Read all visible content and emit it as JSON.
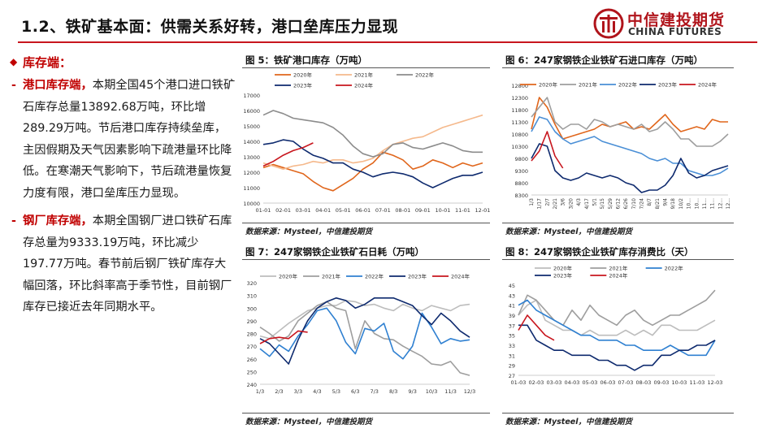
{
  "header": {
    "title": "1.2、铁矿基本面：供需关系好转，港口垒库压力显现",
    "logo_cn": "中信建投期货",
    "logo_en": "CHINA FUTURES"
  },
  "left": {
    "section_title": "库存端：",
    "p1_head": "港口库存端，",
    "p1_body": "本期全国45个港口进口铁矿石库存总量13892.68万吨，环比增289.29万吨。节后港口库存持续垒库，主因假期及天气因素影响下疏港量环比降低。在寒潮天气影响下，节后疏港量恢复力度有限，港口垒库压力显现。",
    "p2_head": "钢厂库存端，",
    "p2_body": "本期全国钢厂进口铁矿石库存总量为9333.19万吨，环比减少197.77万吨。春节前后钢厂铁矿库存大幅回落，环比斜率高于季节性，目前钢厂库存已接近去年同期水平。"
  },
  "colors": {
    "c2020": "#e0661c",
    "c2021": "#f5b98c",
    "c2022": "#8c8c8c",
    "c2023": "#0e2a6e",
    "c2024": "#c8161e",
    "c2021_chart6": "#9e9e9e",
    "c2022_chart6": "#4a8fd6",
    "c2020_chart7": "#bdbdbd",
    "c2021_chart7": "#9e9e9e",
    "c2022_chart7": "#2f80d1"
  },
  "source_text": "数据来源：Mysteel，中信建投期货",
  "chart_data": [
    {
      "type": "line",
      "title": "图 5：铁矿港口库存（万吨）",
      "x_ticks": [
        "01-01",
        "02-01",
        "03-01",
        "04-01",
        "05-01",
        "06-01",
        "07-01",
        "08-01",
        "09-01",
        "10-01",
        "11-01",
        "12-01"
      ],
      "y_ticks": [
        10000,
        11000,
        12000,
        13000,
        14000,
        15000,
        16000,
        17000
      ],
      "ylim": [
        10000,
        17000
      ],
      "series": [
        {
          "name": "2020年",
          "values": [
            12300,
            12500,
            12300,
            12100,
            11900,
            11400,
            11000,
            10800,
            11200,
            11600,
            12200,
            12600,
            13300,
            13100,
            12800,
            12200,
            12400,
            12800,
            12600,
            12300,
            12600,
            12400,
            12600
          ]
        },
        {
          "name": "2021年",
          "values": [
            12600,
            12400,
            12200,
            12400,
            12500,
            12700,
            12600,
            12800,
            12800,
            12600,
            12700,
            12900,
            13400,
            13800,
            14000,
            14200,
            14300,
            14600,
            14900,
            15100,
            15300,
            15500,
            15700
          ]
        },
        {
          "name": "2022年",
          "values": [
            15700,
            16000,
            15800,
            15500,
            15400,
            15300,
            15200,
            14900,
            14400,
            13700,
            13200,
            13000,
            13200,
            13800,
            13900,
            13600,
            13500,
            13700,
            13900,
            13700,
            13400,
            13300,
            13300
          ]
        },
        {
          "name": "2023年",
          "values": [
            13800,
            13900,
            14100,
            14000,
            13500,
            13100,
            12900,
            12600,
            12600,
            12200,
            12000,
            11700,
            11900,
            12000,
            11900,
            11700,
            11300,
            11000,
            11300,
            11600,
            11800,
            11800,
            12000
          ]
        },
        {
          "name": "2024年",
          "values": [
            12400,
            12700,
            13100,
            13400,
            13600,
            13900
          ]
        }
      ]
    },
    {
      "type": "line",
      "title": "图 6：247家钢铁企业铁矿石进口库存（万吨）",
      "x_ticks": [
        "1/3",
        "1/17",
        "2/7",
        "2/21",
        "3/6",
        "3/20",
        "4/3",
        "4/17",
        "5/1",
        "5/15",
        "5/29",
        "6/12",
        "6/26",
        "7/10",
        "7/24",
        "8/7",
        "8/21",
        "9/4",
        "9/18",
        "10/2",
        "10...",
        "10...",
        "11...",
        "11...",
        "12...",
        "12..."
      ],
      "y_ticks": [
        8300,
        8800,
        9300,
        9800,
        10300,
        10800,
        11300,
        11800,
        12300,
        12800
      ],
      "ylim": [
        8300,
        12800
      ],
      "series": [
        {
          "name": "2020年",
          "values": [
            11000,
            12300,
            11900,
            11200,
            10600,
            10700,
            10800,
            10900,
            11000,
            11200,
            11100,
            11200,
            11300,
            11000,
            11100,
            11000,
            11300,
            11600,
            11200,
            10900,
            11000,
            11100,
            11000,
            11400,
            11300,
            11300
          ]
        },
        {
          "name": "2021年",
          "values": [
            11500,
            11900,
            12300,
            11300,
            11000,
            11200,
            11200,
            11000,
            11400,
            11300,
            11100,
            11200,
            11100,
            11000,
            11200,
            10900,
            11000,
            11300,
            11000,
            10600,
            10600,
            10300,
            10300,
            10300,
            10500,
            10800
          ]
        },
        {
          "name": "2022年",
          "values": [
            10900,
            11500,
            11400,
            10900,
            10600,
            10400,
            10500,
            10600,
            10700,
            10500,
            10400,
            10300,
            10200,
            10100,
            10000,
            9800,
            9700,
            9800,
            9600,
            9600,
            9300,
            9200,
            9100,
            9100,
            9200,
            9400
          ]
        },
        {
          "name": "2023年",
          "values": [
            9800,
            10400,
            10300,
            9300,
            9000,
            8900,
            9000,
            9200,
            9100,
            9000,
            9100,
            9000,
            8800,
            8700,
            8400,
            8500,
            8500,
            8700,
            9100,
            9800,
            9200,
            9000,
            9100,
            9300,
            9400,
            9500
          ]
        },
        {
          "name": "2024年",
          "values": [
            9700,
            10100,
            10900,
            9900,
            9400
          ]
        }
      ]
    },
    {
      "type": "line",
      "title": "图 7：247家钢铁企业铁矿石日耗（万吨）",
      "x_ticks": [
        "1/3",
        "2/3",
        "3/3",
        "4/3",
        "5/3",
        "6/3",
        "7/3",
        "8/3",
        "9/3",
        "10/3",
        "11/3",
        "12/3"
      ],
      "y_ticks": [
        240,
        250,
        260,
        270,
        280,
        290,
        300,
        310,
        320
      ],
      "ylim": [
        240,
        320
      ],
      "series": [
        {
          "name": "2020年",
          "values": [
            278,
            276,
            282,
            288,
            293,
            298,
            300,
            302,
            302,
            306,
            305,
            302,
            303,
            300,
            298,
            303,
            300,
            298,
            302,
            300,
            298,
            302,
            303
          ]
        },
        {
          "name": "2021年",
          "values": [
            285,
            280,
            274,
            278,
            290,
            296,
            302,
            305,
            300,
            298,
            268,
            290,
            280,
            276,
            275,
            270,
            266,
            262,
            256,
            255,
            258,
            249,
            247
          ]
        },
        {
          "name": "2022年",
          "values": [
            268,
            262,
            271,
            266,
            278,
            287,
            298,
            300,
            290,
            273,
            264,
            284,
            282,
            288,
            266,
            260,
            270,
            296,
            285,
            272,
            276,
            274,
            275
          ]
        },
        {
          "name": "2023年",
          "values": [
            276,
            272,
            264,
            256,
            275,
            290,
            300,
            305,
            308,
            306,
            300,
            303,
            308,
            308,
            308,
            305,
            302,
            294,
            287,
            296,
            290,
            282,
            277
          ]
        },
        {
          "name": "2024年",
          "values": [
            272,
            276,
            277,
            276,
            282,
            281
          ]
        }
      ]
    },
    {
      "type": "line",
      "title": "图 8：247家钢铁企业铁矿库存消费比（天）",
      "x_ticks": [
        "01-03",
        "02-03",
        "03-03",
        "04-03",
        "05-03",
        "06-03",
        "07-03",
        "08-03",
        "09-03",
        "10-03",
        "11-03",
        "12-03"
      ],
      "y_ticks": [
        27,
        29,
        31,
        33,
        35,
        37,
        39,
        41,
        43,
        45
      ],
      "ylim": [
        27,
        45
      ],
      "series": [
        {
          "name": "2020年",
          "values": [
            39,
            41,
            42,
            38,
            37,
            36,
            36,
            35,
            36,
            35,
            35,
            35,
            36,
            35,
            36,
            35,
            37,
            37,
            36,
            36,
            36,
            37,
            38
          ]
        },
        {
          "name": "2021年",
          "values": [
            39,
            43,
            42,
            40,
            38,
            37,
            40,
            38,
            41,
            39,
            38,
            37,
            39,
            40,
            38,
            37,
            38,
            39,
            39,
            40,
            41,
            42,
            44
          ]
        },
        {
          "name": "2022年",
          "values": [
            41,
            42,
            40,
            39,
            38,
            37,
            36,
            35,
            35,
            34,
            34,
            34,
            33,
            33,
            32,
            32,
            32,
            33,
            32,
            31,
            31,
            31,
            34
          ]
        },
        {
          "name": "2023年",
          "values": [
            37,
            37,
            34,
            33,
            32,
            32,
            31,
            31,
            31,
            30,
            30,
            29,
            29,
            28,
            29,
            29,
            31,
            31,
            32,
            32,
            33,
            33,
            34
          ]
        },
        {
          "name": "2024年",
          "values": [
            36,
            39,
            37,
            35,
            34
          ]
        }
      ]
    }
  ]
}
